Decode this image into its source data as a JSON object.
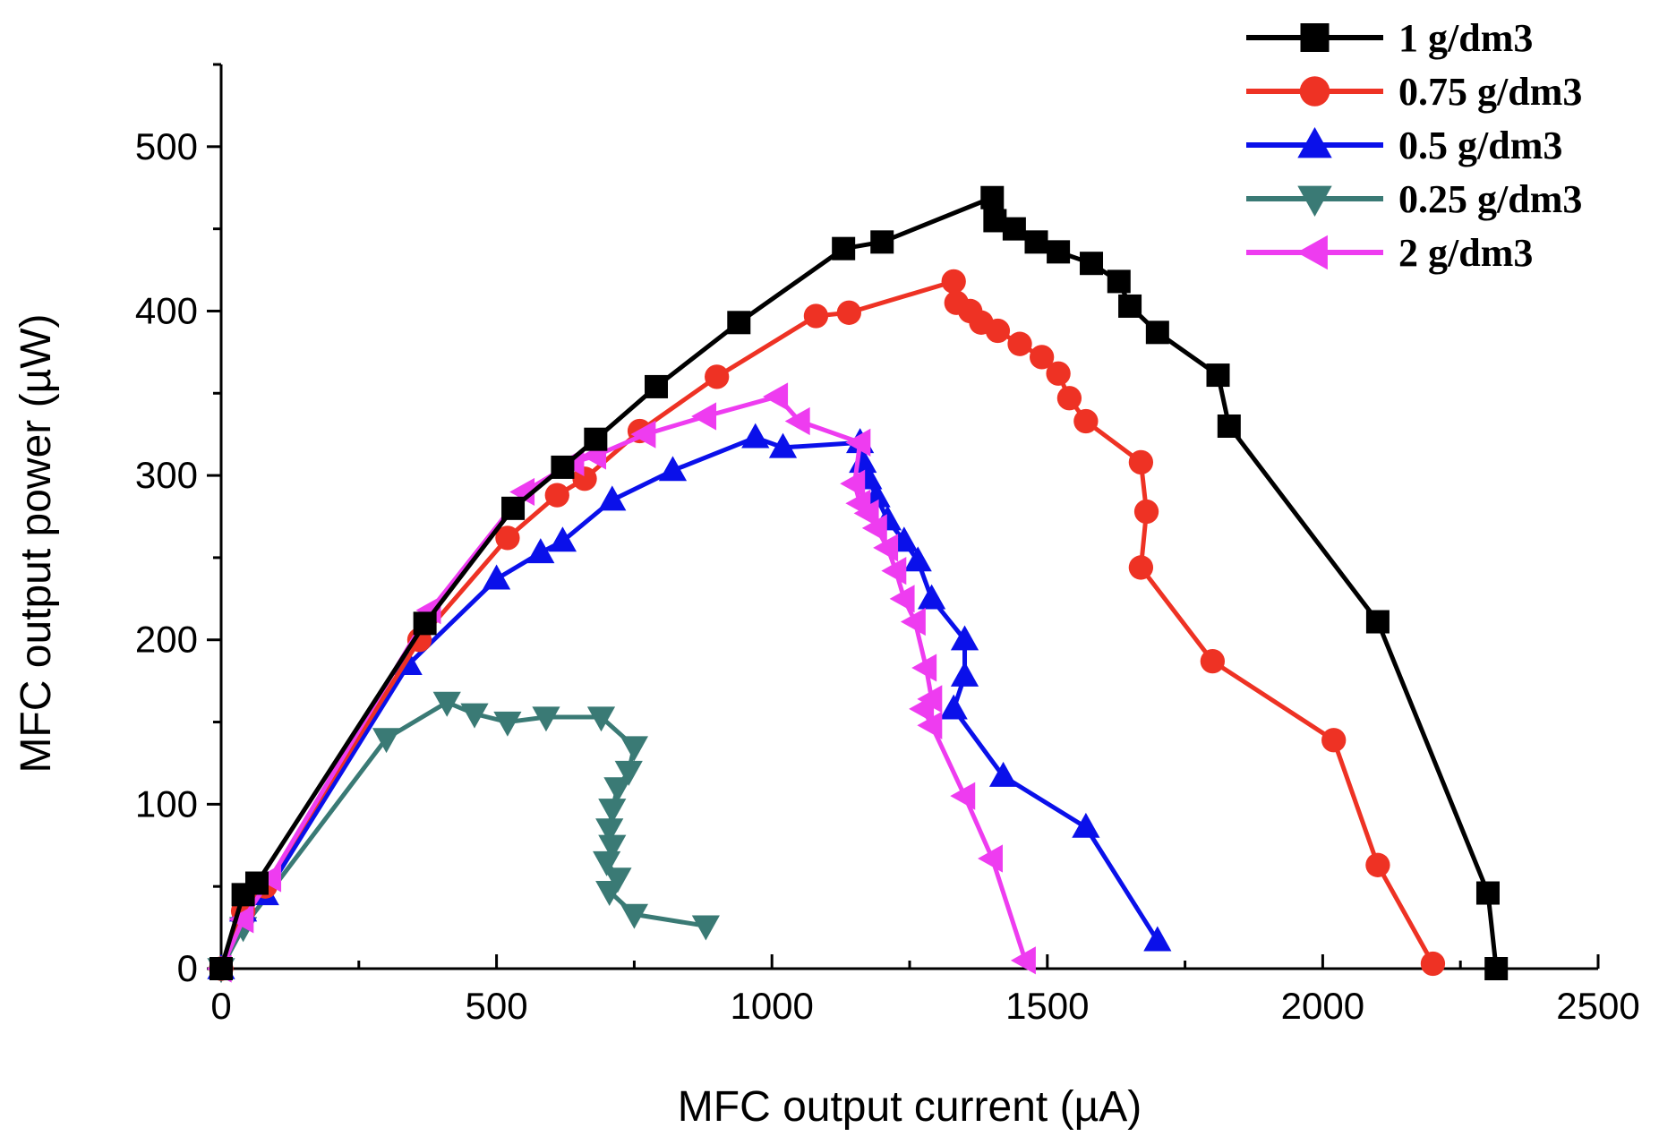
{
  "chart_data": {
    "type": "line",
    "title": "",
    "xlabel": "MFC output current (µA)",
    "ylabel": "MFC output power (µW)",
    "xlim": [
      0,
      2500
    ],
    "ylim": [
      0,
      550
    ],
    "xticks": [
      0,
      500,
      1000,
      1500,
      2000,
      2500
    ],
    "yticks": [
      0,
      100,
      200,
      300,
      400,
      500
    ],
    "x_tick_labels": [
      "0",
      "500",
      "1000",
      "1500",
      "2000",
      "2500"
    ],
    "y_tick_labels": [
      "0",
      "100",
      "200",
      "300",
      "400",
      "500"
    ],
    "legend_position": "top-right",
    "series": [
      {
        "name": "1 g/dm3",
        "color": "#000000",
        "marker": "square",
        "x": [
          0,
          40,
          65,
          370,
          530,
          620,
          680,
          790,
          940,
          1130,
          1200,
          1400,
          1405,
          1440,
          1480,
          1520,
          1580,
          1630,
          1650,
          1700,
          1810,
          1830,
          2100,
          2300,
          2315
        ],
        "y": [
          0,
          45,
          52,
          210,
          280,
          305,
          322,
          354,
          393,
          438,
          442,
          469,
          455,
          450,
          442,
          436,
          429,
          418,
          403,
          387,
          361,
          330,
          211,
          46,
          0
        ]
      },
      {
        "name": "0.75 g/dm3",
        "color": "#ee3224",
        "marker": "circle",
        "x": [
          0,
          40,
          80,
          360,
          520,
          610,
          660,
          760,
          900,
          1080,
          1140,
          1330,
          1335,
          1360,
          1380,
          1410,
          1450,
          1490,
          1520,
          1540,
          1570,
          1670,
          1680,
          1670,
          1800,
          2020,
          2100,
          2200
        ],
        "y": [
          0,
          35,
          50,
          200,
          262,
          288,
          298,
          327,
          360,
          397,
          399,
          418,
          405,
          400,
          393,
          388,
          380,
          372,
          362,
          347,
          333,
          308,
          278,
          244,
          187,
          139,
          63,
          3
        ]
      },
      {
        "name": "0.5 g/dm3",
        "color": "#0a10ea",
        "marker": "triangle-up",
        "x": [
          0,
          40,
          80,
          340,
          500,
          580,
          620,
          710,
          820,
          970,
          1020,
          1160,
          1165,
          1175,
          1190,
          1210,
          1240,
          1265,
          1290,
          1350,
          1350,
          1330,
          1420,
          1570,
          1700
        ],
        "y": [
          0,
          35,
          45,
          185,
          237,
          253,
          260,
          285,
          303,
          323,
          317,
          320,
          308,
          298,
          287,
          273,
          260,
          248,
          225,
          200,
          178,
          158,
          117,
          86,
          17
        ]
      },
      {
        "name": "0.25 g/dm3",
        "color": "#3a7a75",
        "marker": "triangle-down",
        "x": [
          0,
          40,
          300,
          410,
          460,
          520,
          590,
          690,
          750,
          740,
          720,
          710,
          705,
          710,
          700,
          720,
          705,
          750,
          880
        ],
        "y": [
          0,
          25,
          140,
          162,
          155,
          150,
          153,
          153,
          135,
          120,
          110,
          97,
          85,
          75,
          65,
          55,
          47,
          33,
          26
        ]
      },
      {
        "name": "2 g/dm3",
        "color": "#ee3cf0",
        "marker": "triangle-left",
        "x": [
          0,
          40,
          90,
          380,
          550,
          640,
          680,
          770,
          880,
          1010,
          1050,
          1160,
          1150,
          1160,
          1175,
          1190,
          1210,
          1225,
          1240,
          1260,
          1280,
          1290,
          1275,
          1290,
          1350,
          1400,
          1460
        ],
        "y": [
          0,
          30,
          55,
          218,
          290,
          308,
          312,
          325,
          336,
          348,
          333,
          320,
          295,
          283,
          277,
          268,
          256,
          242,
          225,
          211,
          183,
          164,
          158,
          148,
          105,
          67,
          5
        ]
      }
    ]
  }
}
